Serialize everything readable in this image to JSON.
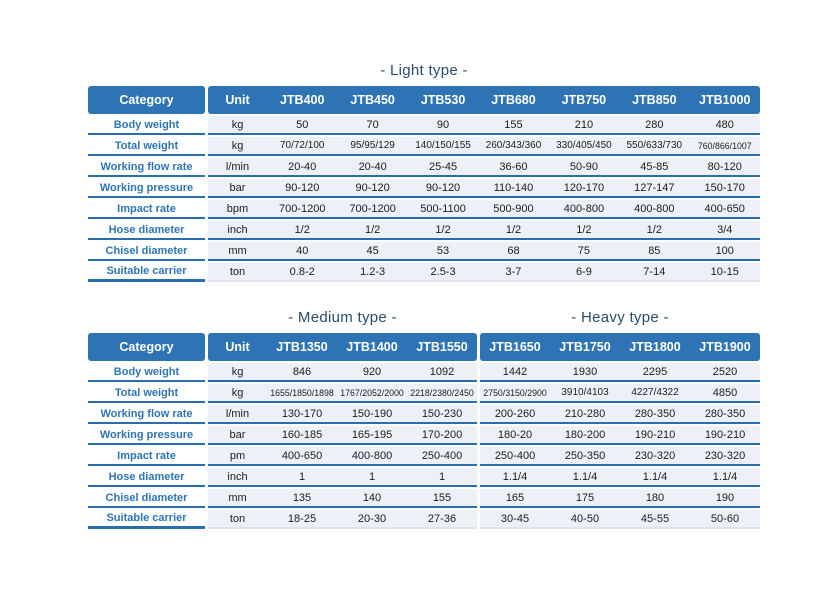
{
  "colors": {
    "accent": "#2E74B5",
    "accent_text": "#2E75B6",
    "line": "#2A6DB0",
    "row_bg": "#EDF0F6",
    "title_text": "#2B4A70",
    "cell_text": "#1C1C1C",
    "header_text": "#FFFFFF",
    "page_bg": "#FFFFFF"
  },
  "tables": [
    {
      "titles": [
        "- Light type -"
      ],
      "category_header": "Category",
      "unit_header": "Unit",
      "model_groups": [
        [
          "JTB400",
          "JTB450",
          "JTB530",
          "JTB680",
          "JTB750",
          "JTB850",
          "JTB1000"
        ]
      ],
      "rows": [
        {
          "category": "Body weight",
          "unit": "kg",
          "values": [
            "50",
            "70",
            "90",
            "155",
            "210",
            "280",
            "480"
          ]
        },
        {
          "category": "Total weight",
          "unit": "kg",
          "values": [
            "70/72/100",
            "95/95/129",
            "140/150/155",
            "260/343/360",
            "330/405/450",
            "550/633/730",
            "760/866/1007"
          ]
        },
        {
          "category": "Working flow rate",
          "unit": "l/min",
          "values": [
            "20-40",
            "20-40",
            "25-45",
            "36-60",
            "50-90",
            "45-85",
            "80-120"
          ]
        },
        {
          "category": "Working pressure",
          "unit": "bar",
          "values": [
            "90-120",
            "90-120",
            "90-120",
            "110-140",
            "120-170",
            "127-147",
            "150-170"
          ]
        },
        {
          "category": "Impact rate",
          "unit": "bpm",
          "values": [
            "700-1200",
            "700-1200",
            "500-1100",
            "500-900",
            "400-800",
            "400-800",
            "400-650"
          ]
        },
        {
          "category": "Hose diameter",
          "unit": "inch",
          "values": [
            "1/2",
            "1/2",
            "1/2",
            "1/2",
            "1/2",
            "1/2",
            "3/4"
          ]
        },
        {
          "category": "Chisel diameter",
          "unit": "mm",
          "values": [
            "40",
            "45",
            "53",
            "68",
            "75",
            "85",
            "100"
          ]
        },
        {
          "category": "Suitable carrier",
          "unit": "ton",
          "values": [
            "0.8-2",
            "1.2-3",
            "2.5-3",
            "3-7",
            "6-9",
            "7-14",
            "10-15"
          ]
        }
      ]
    },
    {
      "titles": [
        "- Medium type -",
        "- Heavy type -"
      ],
      "category_header": "Category",
      "unit_header": "Unit",
      "model_groups": [
        [
          "JTB1350",
          "JTB1400",
          "JTB1550"
        ],
        [
          "JTB1650",
          "JTB1750",
          "JTB1800",
          "JTB1900"
        ]
      ],
      "rows": [
        {
          "category": "Body weight",
          "unit": "kg",
          "values": [
            "846",
            "920",
            "1092",
            "1442",
            "1930",
            "2295",
            "2520"
          ]
        },
        {
          "category": "Total weight",
          "unit": "kg",
          "values": [
            "1655/1850/1898",
            "1767/2052/2000",
            "2218/2380/2450",
            "2750/3150/2900",
            "3910/4103",
            "4227/4322",
            "4850"
          ]
        },
        {
          "category": "Working flow rate",
          "unit": "l/min",
          "values": [
            "130-170",
            "150-190",
            "150-230",
            "200-260",
            "210-280",
            "280-350",
            "280-350"
          ]
        },
        {
          "category": "Working pressure",
          "unit": "bar",
          "values": [
            "160-185",
            "165-195",
            "170-200",
            "180-20",
            "180-200",
            "190-210",
            "190-210"
          ]
        },
        {
          "category": "Impact rate",
          "unit": "pm",
          "values": [
            "400-650",
            "400-800",
            "250-400",
            "250-400",
            "250-350",
            "230-320",
            "230-320"
          ]
        },
        {
          "category": "Hose diameter",
          "unit": "inch",
          "values": [
            "1",
            "1",
            "1",
            "1.1/4",
            "1.1/4",
            "1.1/4",
            "1.1/4"
          ]
        },
        {
          "category": "Chisel diameter",
          "unit": "mm",
          "values": [
            "135",
            "140",
            "155",
            "165",
            "175",
            "180",
            "190"
          ]
        },
        {
          "category": "Suitable carrier",
          "unit": "ton",
          "values": [
            "18-25",
            "20-30",
            "27-36",
            "30-45",
            "40-50",
            "45-55",
            "50-60"
          ]
        }
      ]
    }
  ]
}
